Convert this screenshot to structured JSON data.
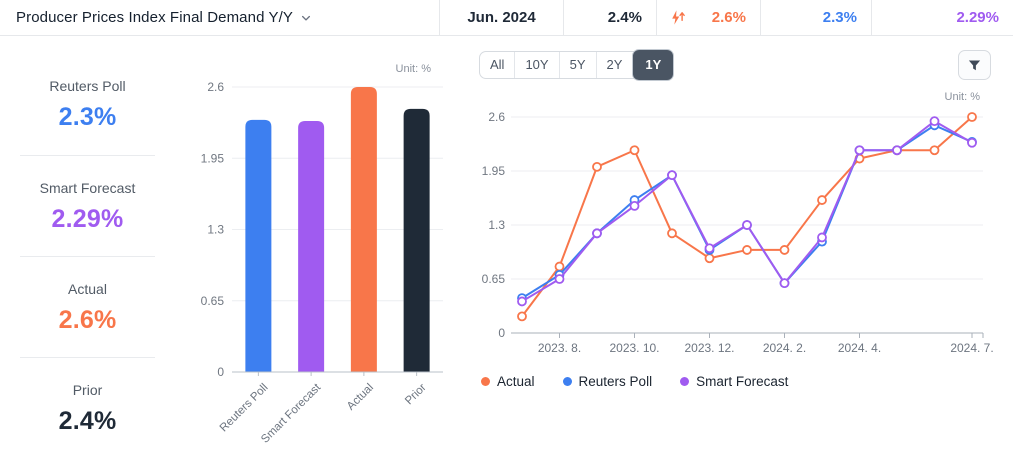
{
  "header": {
    "title": "Producer Prices Index Final Demand Y/Y",
    "period": "Jun. 2024",
    "prior": "2.4%",
    "actual": "2.6%",
    "reuters_poll": "2.3%",
    "smart_forecast": "2.29%"
  },
  "sidebar": {
    "items": [
      {
        "label": "Reuters Poll",
        "value": "2.3%",
        "color": "#3d7ff0"
      },
      {
        "label": "Smart Forecast",
        "value": "2.29%",
        "color": "#a05bf0"
      },
      {
        "label": "Actual",
        "value": "2.6%",
        "color": "#f8764a"
      },
      {
        "label": "Prior",
        "value": "2.4%",
        "color": "#1f2a37"
      }
    ]
  },
  "range_selector": {
    "options": [
      "All",
      "10Y",
      "5Y",
      "2Y",
      "1Y"
    ],
    "selected": "1Y"
  },
  "legend": [
    {
      "label": "Actual",
      "color": "#f8764a"
    },
    {
      "label": "Reuters Poll",
      "color": "#3d7ff0"
    },
    {
      "label": "Smart Forecast",
      "color": "#a05bf0"
    }
  ],
  "chart_data": [
    {
      "type": "bar",
      "title": "Consensus vs Actual",
      "unit": "Unit: %",
      "categories": [
        "Reuters Poll",
        "Smart Forecast",
        "Actual",
        "Prior"
      ],
      "values": [
        2.3,
        2.29,
        2.6,
        2.4
      ],
      "colors": [
        "#3d7ff0",
        "#a05bf0",
        "#f8764a",
        "#1f2a37"
      ],
      "ylim": [
        0,
        2.6
      ],
      "yticks": [
        0,
        0.65,
        1.3,
        1.95,
        2.6
      ],
      "ytick_labels": [
        "0",
        "0.65",
        "1.3",
        "1.95",
        "2.6"
      ],
      "grid": true
    },
    {
      "type": "line",
      "title": "1Y history",
      "unit": "Unit: %",
      "x": [
        "2023.7",
        "2023.8",
        "2023.9",
        "2023.10",
        "2023.11",
        "2023.12",
        "2024.1",
        "2024.2",
        "2024.3",
        "2024.4",
        "2024.5",
        "2024.6",
        "2024.7"
      ],
      "xtick_indices": [
        1,
        3,
        5,
        7,
        9,
        12
      ],
      "xtick_labels": [
        "2023. 8.",
        "2023. 10.",
        "2023. 12.",
        "2024. 2.",
        "2024. 4.",
        "2024. 7."
      ],
      "ylim": [
        0,
        2.6
      ],
      "yticks": [
        0,
        0.65,
        1.3,
        1.95,
        2.6
      ],
      "ytick_labels": [
        "0",
        "0.65",
        "1.3",
        "1.95",
        "2.6"
      ],
      "grid": true,
      "legend_position": "bottom",
      "series": [
        {
          "name": "Actual",
          "color": "#f8764a",
          "values": [
            0.2,
            0.8,
            2.0,
            2.2,
            1.2,
            0.9,
            1.0,
            1.0,
            1.6,
            2.1,
            2.2,
            2.2,
            2.6
          ]
        },
        {
          "name": "Reuters Poll",
          "color": "#3d7ff0",
          "values": [
            0.42,
            0.7,
            1.2,
            1.6,
            1.9,
            1.0,
            1.3,
            0.6,
            1.1,
            2.2,
            2.2,
            2.5,
            2.3
          ]
        },
        {
          "name": "Smart Forecast",
          "color": "#a05bf0",
          "values": [
            0.38,
            0.65,
            1.2,
            1.53,
            1.9,
            1.02,
            1.3,
            0.6,
            1.15,
            2.2,
            2.2,
            2.55,
            2.29
          ]
        }
      ]
    }
  ],
  "colors": {
    "accent_orange": "#f8764a",
    "accent_blue": "#3d7ff0",
    "accent_purple": "#a05bf0",
    "dark_navy": "#1f2a37",
    "selected_button_bg": "#4a5563"
  }
}
